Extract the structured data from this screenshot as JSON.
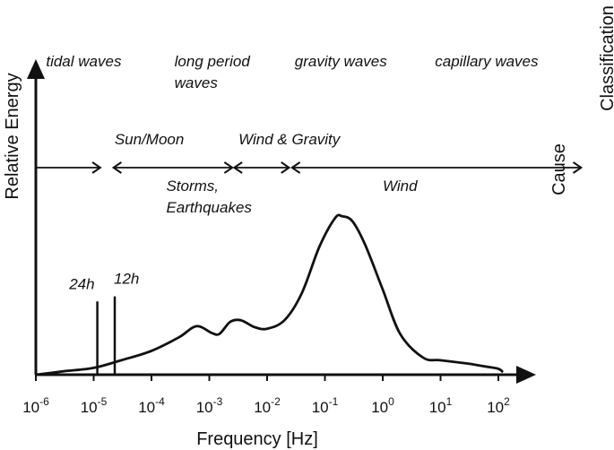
{
  "chart_data": {
    "type": "line",
    "title": "",
    "xlabel": "Frequency [Hz]",
    "ylabel": "Relative Energy",
    "x_scale": "log",
    "xlim": [
      1e-06,
      1000
    ],
    "ylim": [
      0,
      1
    ],
    "grid": false,
    "x_ticks": [
      {
        "value": 1e-06,
        "base": "10",
        "exp": "-6"
      },
      {
        "value": 1e-05,
        "base": "10",
        "exp": "-5"
      },
      {
        "value": 0.0001,
        "base": "10",
        "exp": "-4"
      },
      {
        "value": 0.001,
        "base": "10",
        "exp": "-3"
      },
      {
        "value": 0.01,
        "base": "10",
        "exp": "-2"
      },
      {
        "value": 0.1,
        "base": "10",
        "exp": "-1"
      },
      {
        "value": 1,
        "base": "10",
        "exp": "0"
      },
      {
        "value": 10,
        "base": "10",
        "exp": "1"
      },
      {
        "value": 100,
        "base": "10",
        "exp": "2"
      }
    ],
    "series": [
      {
        "color": "#111111",
        "points": [
          [
            1e-06,
            0.0
          ],
          [
            3e-06,
            0.02
          ],
          [
            1e-05,
            0.04
          ],
          [
            3e-05,
            0.085
          ],
          [
            0.0001,
            0.14
          ],
          [
            0.0003,
            0.22
          ],
          [
            0.0006,
            0.285
          ],
          [
            0.0011,
            0.245
          ],
          [
            0.0015,
            0.24
          ],
          [
            0.0023,
            0.31
          ],
          [
            0.0035,
            0.32
          ],
          [
            0.006,
            0.28
          ],
          [
            0.01,
            0.27
          ],
          [
            0.02,
            0.32
          ],
          [
            0.04,
            0.48
          ],
          [
            0.08,
            0.75
          ],
          [
            0.15,
            0.92
          ],
          [
            0.2,
            0.93
          ],
          [
            0.3,
            0.9
          ],
          [
            0.5,
            0.76
          ],
          [
            1,
            0.5
          ],
          [
            2,
            0.24
          ],
          [
            5,
            0.1
          ],
          [
            10,
            0.085
          ],
          [
            30,
            0.065
          ],
          [
            60,
            0.048
          ],
          [
            100,
            0.035
          ],
          [
            120,
            0.015
          ]
        ]
      }
    ],
    "tidal_lines": [
      {
        "label": "24h",
        "frequency": 1.157e-05,
        "height": 0.43
      },
      {
        "label": "12h",
        "frequency": 2.315e-05,
        "height": 0.46
      }
    ],
    "classification": {
      "title": "Classification",
      "items": [
        {
          "text": [
            "tidal waves"
          ],
          "at": 1.5e-06
        },
        {
          "text": [
            "long period",
            "waves"
          ],
          "at": 0.00025
        },
        {
          "text": [
            "gravity waves"
          ],
          "at": 0.03
        },
        {
          "text": [
            "capillary waves"
          ],
          "at": 8
        }
      ]
    },
    "cause": {
      "title": "Cause",
      "arrows": [
        {
          "from": 1e-06,
          "to": 1.3e-05,
          "heads": "end"
        },
        {
          "from": 2.2e-05,
          "to": 0.0025,
          "heads": "both"
        },
        {
          "from": 0.0027,
          "to": 0.024,
          "heads": "both"
        },
        {
          "from": 0.027,
          "to": 2700.0,
          "heads": "both"
        }
      ],
      "labels_above": [
        {
          "text": [
            "Sun/Moon"
          ],
          "at": 2.3e-05
        },
        {
          "text": [
            "Wind & Gravity"
          ],
          "at": 0.0032
        }
      ],
      "labels_below": [
        {
          "text": [
            "Storms,",
            "Earthquakes"
          ],
          "at": 0.00018
        },
        {
          "text": [
            "Wind"
          ],
          "at": 1.0
        }
      ]
    }
  }
}
